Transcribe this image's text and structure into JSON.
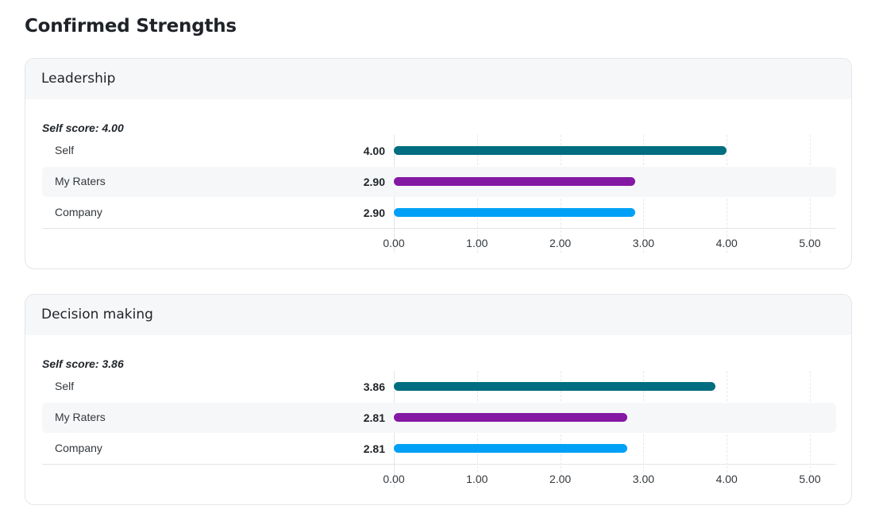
{
  "page": {
    "title": "Confirmed Strengths"
  },
  "sections": [
    {
      "title": "Leadership",
      "self_score_label": "Self score: 4.00",
      "rows": [
        {
          "label": "Self",
          "value": 4.0,
          "value_text": "4.00",
          "color": "#006d80"
        },
        {
          "label": "My Raters",
          "value": 2.9,
          "value_text": "2.90",
          "color": "#8419a3"
        },
        {
          "label": "Company",
          "value": 2.9,
          "value_text": "2.90",
          "color": "#00a0f6"
        }
      ]
    },
    {
      "title": "Decision making",
      "self_score_label": "Self score: 3.86",
      "rows": [
        {
          "label": "Self",
          "value": 3.86,
          "value_text": "3.86",
          "color": "#006d80"
        },
        {
          "label": "My Raters",
          "value": 2.81,
          "value_text": "2.81",
          "color": "#8419a3"
        },
        {
          "label": "Company",
          "value": 2.81,
          "value_text": "2.81",
          "color": "#00a0f6"
        }
      ]
    }
  ],
  "axis": {
    "min": 0,
    "max": 5,
    "ticks": [
      "0.00",
      "1.00",
      "2.00",
      "3.00",
      "4.00",
      "5.00"
    ]
  }
}
